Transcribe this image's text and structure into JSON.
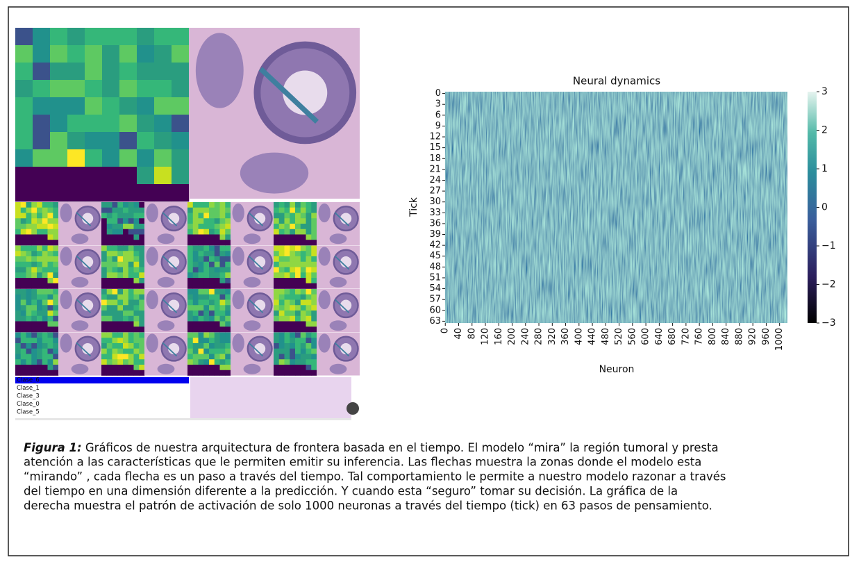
{
  "panel": {
    "legend": [
      "Clase_6",
      "Clase_1",
      "Clase_3",
      "Clase_0",
      "Clase_5"
    ]
  },
  "chart_data": {
    "type": "heatmap",
    "title": "Neural dynamics",
    "xlabel": "Neuron",
    "ylabel": "Tick",
    "xlim": [
      0,
      1024
    ],
    "ylim": [
      0,
      64
    ],
    "xticks": [
      0,
      40,
      80,
      120,
      160,
      200,
      240,
      280,
      320,
      360,
      400,
      440,
      480,
      520,
      560,
      600,
      640,
      680,
      720,
      760,
      800,
      840,
      880,
      920,
      960,
      1000
    ],
    "yticks": [
      0,
      3,
      6,
      9,
      12,
      15,
      18,
      21,
      24,
      27,
      30,
      33,
      36,
      39,
      42,
      45,
      48,
      51,
      54,
      57,
      60,
      63
    ],
    "clim": [
      -3,
      3
    ],
    "cticks": [
      3,
      2,
      1,
      0,
      {
        "value": -1,
        "label": "−1"
      },
      {
        "value": -2,
        "label": "−2"
      },
      {
        "value": -3,
        "label": "−3"
      }
    ]
  },
  "caption": {
    "label": "Figura 1:",
    "lines": [
      " Gráficos de nuestra arquitectura de frontera basada en el tiempo. El modelo “mira” la región tumoral y presta",
      "atención a las características que le permiten emitir su inferencia. Las flechas muestra la zonas donde el modelo esta",
      "“mirando” , cada flecha es un paso a través del tiempo. Tal comportamiento le permite a nuestro modelo razonar a través",
      "del tiempo en una dimensión diferente a la predicción. Y cuando esta “seguro” tomar su decisión. La gráfica de la",
      "derecha muestra el patrón de activación de solo 1000 neuronas a través del tiempo (tick) en 63 pasos de pensamiento."
    ]
  }
}
